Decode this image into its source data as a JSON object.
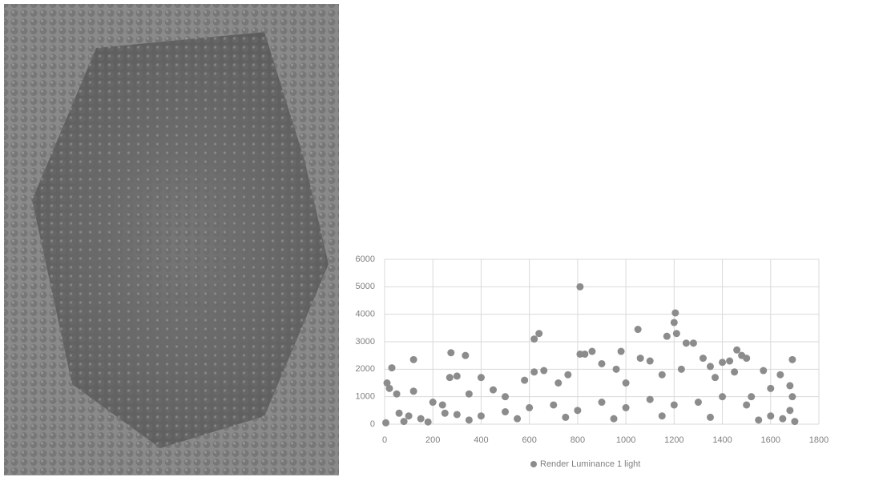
{
  "chart_data": {
    "type": "scatter",
    "x": [
      810,
      1205,
      1200,
      620,
      640,
      1050,
      1170,
      1210,
      275,
      335,
      120,
      30,
      1690,
      1460,
      980,
      860,
      830,
      810,
      1250,
      1280,
      1060,
      1500,
      1480,
      1400,
      1430,
      300,
      270,
      400,
      620,
      660,
      720,
      900,
      960,
      1100,
      1320,
      1350,
      1570,
      1640,
      1600,
      10,
      20,
      50,
      120,
      200,
      240,
      350,
      450,
      500,
      580,
      760,
      1000,
      1150,
      1230,
      1370,
      1450,
      1520,
      1680,
      1690,
      60,
      100,
      150,
      250,
      300,
      400,
      500,
      600,
      700,
      800,
      900,
      1000,
      1100,
      1200,
      1300,
      1400,
      1500,
      1600,
      1650,
      1700,
      5,
      80,
      180,
      350,
      550,
      750,
      950,
      1150,
      1350,
      1550,
      1680
    ],
    "series": [
      {
        "name": "Render Luminance 1 light",
        "color": "#8c8c8c",
        "values": [
          5000,
          4050,
          3700,
          3100,
          3300,
          3450,
          3200,
          3300,
          2600,
          2500,
          2350,
          2050,
          2350,
          2700,
          2650,
          2650,
          2550,
          2550,
          2950,
          2950,
          2400,
          2400,
          2500,
          2250,
          2300,
          1750,
          1700,
          1700,
          1900,
          1950,
          1500,
          2200,
          2000,
          2300,
          2400,
          2100,
          1950,
          1800,
          1300,
          1500,
          1300,
          1100,
          1200,
          800,
          700,
          1100,
          1250,
          1000,
          1600,
          1800,
          1500,
          1800,
          2000,
          1700,
          1900,
          1000,
          1400,
          1000,
          400,
          300,
          200,
          400,
          350,
          300,
          450,
          600,
          700,
          500,
          800,
          600,
          900,
          700,
          800,
          1000,
          700,
          300,
          200,
          100,
          50,
          100,
          80,
          150,
          200,
          250,
          200,
          300,
          250,
          150,
          500
        ]
      }
    ],
    "xlim": [
      0,
      1800
    ],
    "xticks": [
      0,
      200,
      400,
      600,
      800,
      1000,
      1200,
      1400,
      1600,
      1800
    ],
    "ylim": [
      0,
      6000
    ],
    "yticks": [
      0,
      1000,
      2000,
      3000,
      4000,
      5000,
      6000
    ],
    "grid": true,
    "legend": "bottom"
  }
}
